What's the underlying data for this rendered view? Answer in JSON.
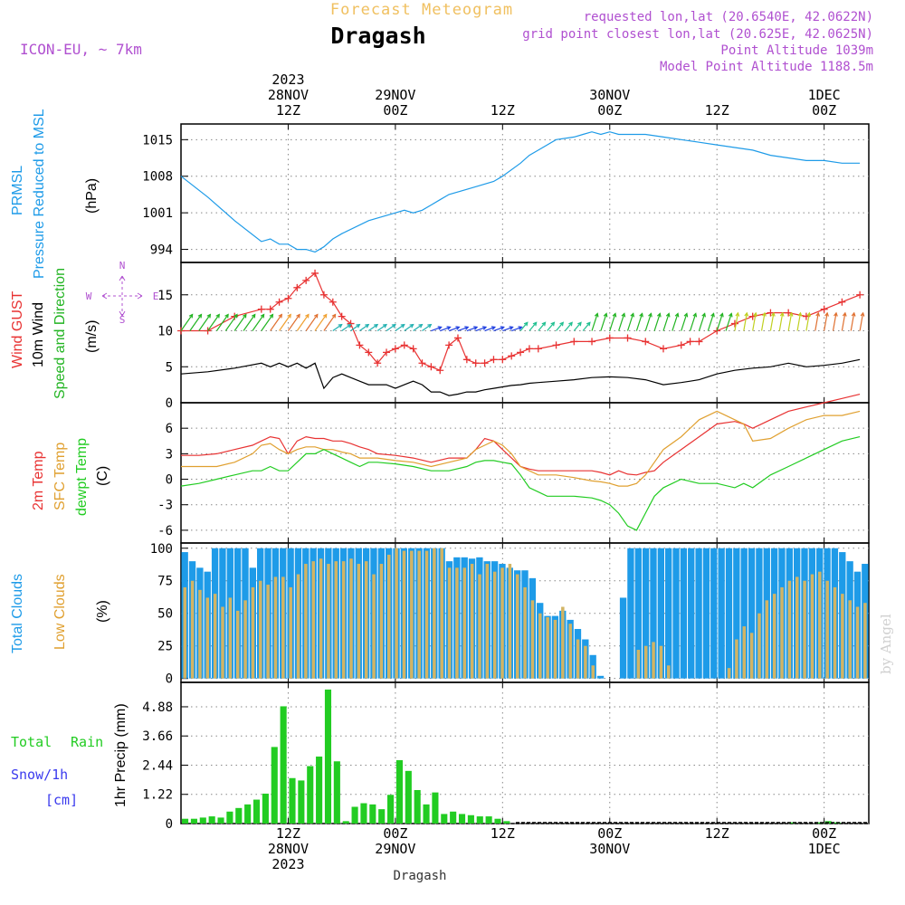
{
  "header": {
    "subtitle": "Forecast Meteogram",
    "title": "Dragash",
    "model": "ICON-EU, ~ 7km",
    "requested": "requested lon,lat (20.6540E, 42.0622N)",
    "grid": "grid point closest lon,lat (20.625E, 42.0625N)",
    "point_alt": "Point Altitude 1039m",
    "model_alt": "Model Point Altitude 1188.5m",
    "credit": "by Angel",
    "footer": "Dragash"
  },
  "colors": {
    "pressure": "#1e9be8",
    "gust": "#e83232",
    "wind": "#000000",
    "dir": "#22b422",
    "t2m": "#e83232",
    "sfc": "#e0a030",
    "dew": "#22cc22",
    "total_cloud": "#1e9be8",
    "low_cloud": "#d2b464",
    "rain": "#22cc22",
    "snow": "#3a3aee",
    "meta": "#b050d0",
    "subtitle": "#f0c060"
  },
  "time_axis": {
    "top": [
      {
        "t": 12,
        "lines": [
          "2023",
          "28NOV",
          "12Z"
        ]
      },
      {
        "t": 24,
        "lines": [
          "29NOV",
          "00Z"
        ]
      },
      {
        "t": 36,
        "lines": [
          "12Z"
        ]
      },
      {
        "t": 48,
        "lines": [
          "30NOV",
          "00Z"
        ]
      },
      {
        "t": 60,
        "lines": [
          "12Z"
        ]
      },
      {
        "t": 72,
        "lines": [
          "1DEC",
          "00Z"
        ]
      }
    ],
    "bottom": [
      {
        "t": 12,
        "lines": [
          "12Z",
          "28NOV",
          "2023"
        ]
      },
      {
        "t": 24,
        "lines": [
          "00Z",
          "29NOV"
        ]
      },
      {
        "t": 36,
        "lines": [
          "12Z"
        ]
      },
      {
        "t": 48,
        "lines": [
          "00Z",
          "30NOV"
        ]
      },
      {
        "t": 60,
        "lines": [
          "12Z"
        ]
      },
      {
        "t": 72,
        "lines": [
          "00Z",
          "1DEC"
        ]
      }
    ]
  },
  "chart_data": [
    {
      "type": "line",
      "panel": "pressure",
      "title": "PRMSL Pressure Reduced to MSL",
      "ylabel": "(hPa)",
      "yticks": [
        994,
        1001,
        1008,
        1015
      ],
      "ylim": [
        991.5,
        1018
      ],
      "x_hours": [
        0,
        3,
        6,
        9,
        10,
        11,
        12,
        13,
        14,
        15,
        16,
        17,
        18,
        21,
        24,
        25,
        26,
        27,
        28,
        29,
        30,
        31,
        33,
        35,
        36,
        38,
        39,
        40,
        42,
        44,
        45,
        46,
        47,
        48,
        49,
        50,
        51,
        52,
        54,
        56,
        58,
        60,
        62,
        64,
        66,
        68,
        70,
        72,
        74,
        76
      ],
      "series": [
        {
          "name": "PRMSL",
          "values": [
            1008,
            1004,
            999.5,
            995.5,
            996,
            995,
            995,
            994,
            994,
            993.5,
            994.5,
            996,
            997,
            999.5,
            1001,
            1001.5,
            1001,
            1001.5,
            1002.5,
            1003.5,
            1004.5,
            1005,
            1006,
            1007,
            1008,
            1010.5,
            1012,
            1013,
            1015,
            1015.5,
            1016,
            1016.5,
            1016,
            1016.5,
            1016,
            1016,
            1016,
            1016,
            1015.5,
            1015,
            1014.5,
            1014,
            1013.5,
            1013,
            1012,
            1011.5,
            1011,
            1011,
            1010.5,
            1010.5
          ]
        }
      ]
    },
    {
      "type": "line",
      "panel": "wind",
      "title": "Wind GUST / 10m Wind / Speed and Direction",
      "ylabel": "(m/s)",
      "yticks": [
        0,
        5,
        10,
        15
      ],
      "ylim": [
        0,
        19.5
      ],
      "x_hours": [
        0,
        3,
        6,
        9,
        10,
        11,
        12,
        13,
        14,
        15,
        16,
        17,
        18,
        19,
        20,
        21,
        22,
        23,
        24,
        25,
        26,
        27,
        28,
        29,
        30,
        31,
        32,
        33,
        34,
        35,
        36,
        37,
        38,
        39,
        40,
        42,
        44,
        46,
        48,
        50,
        52,
        54,
        56,
        57,
        58,
        60,
        62,
        64,
        66,
        68,
        70,
        72,
        74,
        76
      ],
      "series": [
        {
          "name": "Wind GUST",
          "values": [
            10,
            10,
            12,
            13,
            13,
            14,
            14.5,
            16,
            17,
            18,
            15,
            14,
            12,
            11,
            8,
            7,
            5.5,
            7,
            7.5,
            8,
            7.5,
            5.5,
            5,
            4.5,
            8,
            9,
            6,
            5.5,
            5.5,
            6,
            6,
            6.5,
            7,
            7.5,
            7.5,
            8,
            8.5,
            8.5,
            9,
            9,
            8.5,
            7.5,
            8,
            8.5,
            8.5,
            10,
            11,
            12,
            12.5,
            12.5,
            12,
            13,
            14,
            15
          ]
        },
        {
          "name": "10m Wind",
          "values": [
            4,
            4.3,
            4.8,
            5.5,
            5,
            5.5,
            5,
            5.5,
            4.8,
            5.5,
            2,
            3.5,
            4,
            3.5,
            3,
            2.5,
            2.5,
            2.5,
            2,
            2.5,
            3,
            2.5,
            1.5,
            1.5,
            1,
            1.2,
            1.5,
            1.5,
            1.8,
            2,
            2.2,
            2.4,
            2.5,
            2.7,
            2.8,
            3,
            3.2,
            3.5,
            3.6,
            3.5,
            3.2,
            2.5,
            2.8,
            3,
            3.2,
            4,
            4.5,
            4.8,
            5,
            5.5,
            5,
            5.2,
            5.5,
            6
          ]
        }
      ],
      "direction_labels": [
        "N",
        "E",
        "S",
        "W"
      ]
    },
    {
      "type": "line",
      "panel": "temperature",
      "title": "2m Temp / SFC Temp / dewpt Temp",
      "ylabel": "(C)",
      "yticks": [
        -6,
        -3,
        0,
        3,
        6
      ],
      "ylim": [
        -7.5,
        9
      ],
      "x_hours": [
        0,
        2,
        4,
        6,
        8,
        9,
        10,
        11,
        12,
        13,
        14,
        15,
        16,
        17,
        18,
        19,
        20,
        21,
        22,
        24,
        26,
        28,
        30,
        32,
        33,
        34,
        35,
        36,
        37,
        38,
        39,
        40,
        41,
        42,
        44,
        46,
        47,
        48,
        49,
        50,
        51,
        52,
        53,
        54,
        56,
        58,
        60,
        62,
        63,
        64,
        66,
        68,
        70,
        72,
        74,
        76
      ],
      "series": [
        {
          "name": "2m Temp",
          "values": [
            2.8,
            2.8,
            3,
            3.5,
            4,
            4.5,
            5,
            4.8,
            3,
            4.5,
            5,
            4.8,
            4.8,
            4.5,
            4.5,
            4.2,
            3.8,
            3.5,
            3,
            2.8,
            2.5,
            2,
            2.5,
            2.5,
            3.5,
            4.8,
            4.5,
            3.5,
            2.5,
            1.5,
            1.2,
            1,
            1,
            1,
            1,
            1,
            0.8,
            0.5,
            1,
            0.6,
            0.5,
            0.8,
            1,
            2,
            3.5,
            5,
            6.5,
            6.8,
            6.5,
            6,
            7,
            8,
            8.5,
            9,
            9.5,
            10
          ]
        },
        {
          "name": "SFC Temp",
          "values": [
            1.5,
            1.5,
            1.5,
            2,
            3,
            4,
            4.2,
            3.5,
            3,
            3.5,
            3.8,
            3.8,
            3.5,
            3.5,
            3.2,
            3,
            2.5,
            2.5,
            2.5,
            2.2,
            2,
            1.5,
            2,
            2.5,
            3.5,
            4,
            4.5,
            4,
            3,
            1.5,
            1,
            0.5,
            0.5,
            0.5,
            0.2,
            -0.2,
            -0.3,
            -0.5,
            -0.8,
            -0.8,
            -0.5,
            0.5,
            2,
            3.5,
            5,
            7,
            8,
            7,
            6.5,
            4.5,
            4.8,
            6,
            7,
            7.5,
            7.5,
            8
          ]
        },
        {
          "name": "dewpt Temp",
          "values": [
            -0.8,
            -0.5,
            0,
            0.5,
            1,
            1,
            1.5,
            1,
            1,
            2,
            3,
            3,
            3.5,
            3,
            2.5,
            2,
            1.5,
            2,
            2,
            1.8,
            1.5,
            1,
            1,
            1.5,
            2,
            2.2,
            2.2,
            2,
            1.8,
            0.5,
            -1,
            -1.5,
            -2,
            -2,
            -2,
            -2.2,
            -2.5,
            -3,
            -4,
            -5.5,
            -6,
            -4,
            -2,
            -1,
            0,
            -0.5,
            -0.5,
            -1,
            -0.5,
            -1,
            0.5,
            1.5,
            2.5,
            3.5,
            4.5,
            5
          ]
        }
      ]
    },
    {
      "type": "bar",
      "panel": "clouds",
      "title": "Total Clouds / Low Clouds",
      "ylabel": "(%)",
      "yticks": [
        0,
        25,
        50,
        75,
        100
      ],
      "ylim": [
        -3,
        104
      ],
      "series": [
        {
          "name": "Total Clouds",
          "values": [
            97,
            90,
            85,
            82,
            100,
            100,
            100,
            100,
            100,
            85,
            100,
            100,
            100,
            100,
            100,
            100,
            100,
            100,
            100,
            100,
            100,
            100,
            100,
            100,
            100,
            100,
            100,
            100,
            100,
            100,
            100,
            100,
            100,
            100,
            100,
            90,
            93,
            93,
            92,
            93,
            90,
            90,
            88,
            85,
            83,
            83,
            77,
            58,
            48,
            48,
            52,
            45,
            38,
            30,
            18,
            2,
            0,
            0,
            62,
            100,
            100,
            100,
            100,
            100,
            100,
            100,
            100,
            100,
            100,
            100,
            100,
            100,
            100,
            100,
            100,
            100,
            100,
            100,
            100,
            100,
            100,
            100,
            100,
            100,
            100,
            100,
            100,
            97,
            90,
            82,
            88
          ]
        },
        {
          "name": "Low Clouds",
          "values": [
            70,
            75,
            68,
            62,
            65,
            55,
            62,
            52,
            60,
            70,
            75,
            72,
            78,
            78,
            70,
            80,
            88,
            90,
            92,
            88,
            90,
            90,
            92,
            88,
            90,
            80,
            88,
            95,
            100,
            98,
            98,
            98,
            98,
            100,
            100,
            85,
            85,
            85,
            88,
            80,
            88,
            82,
            85,
            88,
            80,
            70,
            60,
            50,
            47,
            45,
            55,
            42,
            30,
            25,
            10,
            0,
            0,
            0,
            0,
            0,
            22,
            25,
            28,
            25,
            10,
            0,
            0,
            0,
            0,
            0,
            0,
            0,
            8,
            30,
            40,
            35,
            50,
            60,
            65,
            70,
            75,
            78,
            75,
            80,
            82,
            75,
            70,
            65,
            60,
            55,
            58
          ]
        }
      ]
    },
    {
      "type": "bar",
      "panel": "precip",
      "title": "Total Rain / Snow/1h [cm]",
      "ylabel": "1hr Precip (mm)",
      "yticks": [
        0,
        1.22,
        2.44,
        3.66,
        4.88
      ],
      "ylim": [
        0,
        5.9
      ],
      "series": [
        {
          "name": "Total Rain",
          "values": [
            0.2,
            0.2,
            0.25,
            0.3,
            0.25,
            0.5,
            0.65,
            0.8,
            1,
            1.25,
            3.2,
            4.9,
            1.9,
            1.8,
            2.4,
            2.8,
            5.6,
            2.6,
            0.1,
            0.7,
            0.85,
            0.8,
            0.6,
            1.2,
            2.65,
            2.2,
            1.4,
            0.8,
            1.3,
            0.4,
            0.5,
            0.4,
            0.35,
            0.3,
            0.3,
            0.2,
            0.1,
            0,
            0,
            0,
            0,
            0,
            0,
            0,
            0,
            0,
            0,
            0,
            0,
            0,
            0,
            0,
            0,
            0,
            0,
            0,
            0,
            0,
            0,
            0,
            0,
            0,
            0,
            0,
            0,
            0,
            0,
            0,
            0.05,
            0,
            0,
            0.05,
            0.1,
            0.05,
            0,
            0,
            0
          ]
        },
        {
          "name": "Snow/1h",
          "values": [
            0,
            0,
            0,
            0,
            0,
            0,
            0,
            0,
            0,
            0,
            0,
            0,
            0,
            0,
            0,
            0,
            0,
            0,
            0,
            0,
            0,
            0,
            0,
            0,
            0,
            0,
            0,
            0,
            0,
            0,
            0,
            0,
            0,
            0,
            0,
            0,
            0,
            0,
            0,
            0,
            0,
            0,
            0,
            0,
            0,
            0,
            0,
            0,
            0,
            0,
            0,
            0,
            0,
            0,
            0,
            0,
            0,
            0,
            0,
            0,
            0,
            0,
            0,
            0,
            0,
            0,
            0,
            0,
            0,
            0,
            0,
            0,
            0,
            0,
            0,
            0,
            0
          ]
        }
      ]
    }
  ],
  "panel_labels": {
    "pressure": {
      "line1": "PRMSL",
      "line2": "Pressure Reduced to MSL",
      "unit": "(hPa)"
    },
    "wind": {
      "line1": "Wind GUST",
      "line2": "10m Wind",
      "line3": "Speed and Direction",
      "unit": "(m/s)"
    },
    "temperature": {
      "line1": "2m Temp",
      "line2": "SFC Temp",
      "line3": "dewpt Temp",
      "unit": "(C)"
    },
    "clouds": {
      "line1": "Total Clouds",
      "line2": "Low Clouds",
      "unit": "(%)"
    },
    "precip": {
      "line1": "Total",
      "line1b": "Rain",
      "line2": "Snow/1h",
      "line3": "[cm]",
      "unit": "1hr Precip (mm)"
    }
  }
}
